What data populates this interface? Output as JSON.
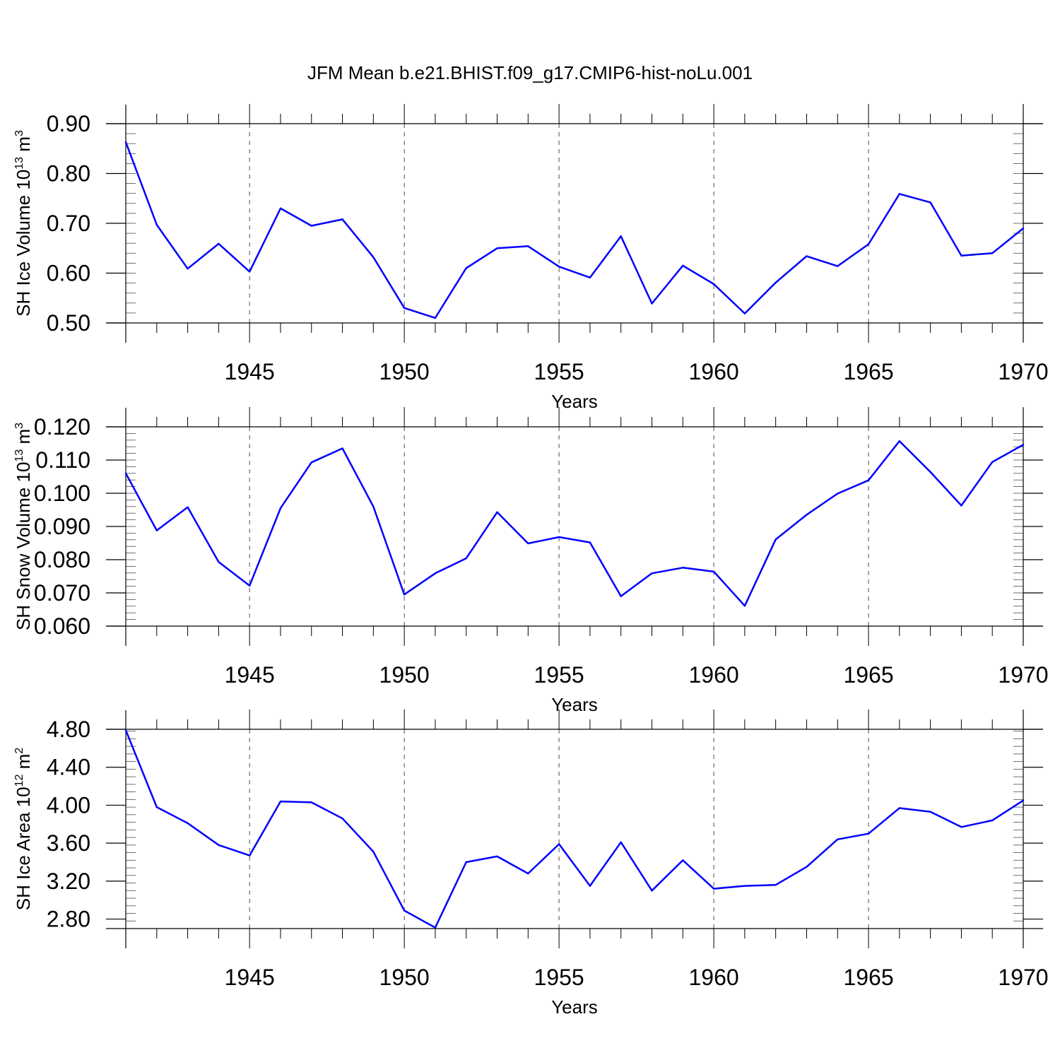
{
  "title": "JFM Mean b.e21.BHIST.f09_g17.CMIP6-hist-noLu.001",
  "colors": {
    "line": "#0000ff",
    "axes": "#000000",
    "grid": "#000000",
    "background": "#ffffff"
  },
  "chart_data": [
    {
      "type": "line",
      "ylabel": "SH Ice Volume 10",
      "ylabel_sup_exp": "13",
      "ylabel_unit": " m",
      "ylabel_unit_sup": "3",
      "xlabel": "Years",
      "xlim": [
        1941,
        1970
      ],
      "ylim": [
        0.5,
        0.9
      ],
      "yticks": [
        "0.50",
        "0.60",
        "0.70",
        "0.80",
        "0.90"
      ],
      "xticks": [
        "1945",
        "1950",
        "1955",
        "1960",
        "1965",
        "1970"
      ],
      "vertical_grid": "dashed at major x ticks",
      "x": [
        1941,
        1942,
        1943,
        1944,
        1945,
        1946,
        1947,
        1948,
        1949,
        1950,
        1951,
        1952,
        1953,
        1954,
        1955,
        1956,
        1957,
        1958,
        1959,
        1960,
        1961,
        1962,
        1963,
        1964,
        1965,
        1966,
        1967,
        1968,
        1969,
        1970
      ],
      "values": [
        0.863,
        0.697,
        0.609,
        0.659,
        0.603,
        0.73,
        0.695,
        0.708,
        0.632,
        0.53,
        0.51,
        0.61,
        0.65,
        0.654,
        0.613,
        0.591,
        0.674,
        0.539,
        0.615,
        0.578,
        0.519,
        0.581,
        0.634,
        0.614,
        0.658,
        0.759,
        0.742,
        0.635,
        0.64,
        0.69
      ]
    },
    {
      "type": "line",
      "ylabel": "SH Snow Volume 10",
      "ylabel_sup_exp": "13",
      "ylabel_unit": " m",
      "ylabel_unit_sup": "3",
      "xlabel": "Years",
      "xlim": [
        1941,
        1970
      ],
      "ylim": [
        0.06,
        0.12
      ],
      "yticks": [
        "0.060",
        "0.070",
        "0.080",
        "0.090",
        "0.100",
        "0.110",
        "0.120"
      ],
      "xticks": [
        "1945",
        "1950",
        "1955",
        "1960",
        "1965",
        "1970"
      ],
      "vertical_grid": "dashed at major x ticks",
      "x": [
        1941,
        1942,
        1943,
        1944,
        1945,
        1946,
        1947,
        1948,
        1949,
        1950,
        1951,
        1952,
        1953,
        1954,
        1955,
        1956,
        1957,
        1958,
        1959,
        1960,
        1961,
        1962,
        1963,
        1964,
        1965,
        1966,
        1967,
        1968,
        1969,
        1970
      ],
      "values": [
        0.106,
        0.0888,
        0.0958,
        0.0793,
        0.0722,
        0.0955,
        0.1093,
        0.1135,
        0.096,
        0.0695,
        0.0759,
        0.0804,
        0.0943,
        0.0849,
        0.0868,
        0.0852,
        0.069,
        0.0759,
        0.0776,
        0.0764,
        0.0661,
        0.0861,
        0.0935,
        0.0999,
        0.1039,
        0.1157,
        0.1064,
        0.0963,
        0.1094,
        0.1146
      ]
    },
    {
      "type": "line",
      "ylabel": "SH Ice Area 10",
      "ylabel_sup_exp": "12",
      "ylabel_unit": " m",
      "ylabel_unit_sup": "2",
      "xlabel": "Years",
      "xlim": [
        1941,
        1970
      ],
      "ylim": [
        2.7,
        4.8
      ],
      "yticks": [
        "2.80",
        "3.20",
        "3.60",
        "4.00",
        "4.40",
        "4.80"
      ],
      "xticks": [
        "1945",
        "1950",
        "1955",
        "1960",
        "1965",
        "1970"
      ],
      "vertical_grid": "dashed at major x ticks",
      "x": [
        1941,
        1942,
        1943,
        1944,
        1945,
        1946,
        1947,
        1948,
        1949,
        1950,
        1951,
        1952,
        1953,
        1954,
        1955,
        1956,
        1957,
        1958,
        1959,
        1960,
        1961,
        1962,
        1963,
        1964,
        1965,
        1966,
        1967,
        1968,
        1969,
        1970
      ],
      "values": [
        4.79,
        3.98,
        3.81,
        3.58,
        3.47,
        4.04,
        4.03,
        3.86,
        3.51,
        2.89,
        2.71,
        3.4,
        3.46,
        3.28,
        3.59,
        3.15,
        3.61,
        3.1,
        3.42,
        3.12,
        3.15,
        3.16,
        3.35,
        3.64,
        3.7,
        3.97,
        3.93,
        3.77,
        3.84,
        4.05
      ]
    }
  ]
}
